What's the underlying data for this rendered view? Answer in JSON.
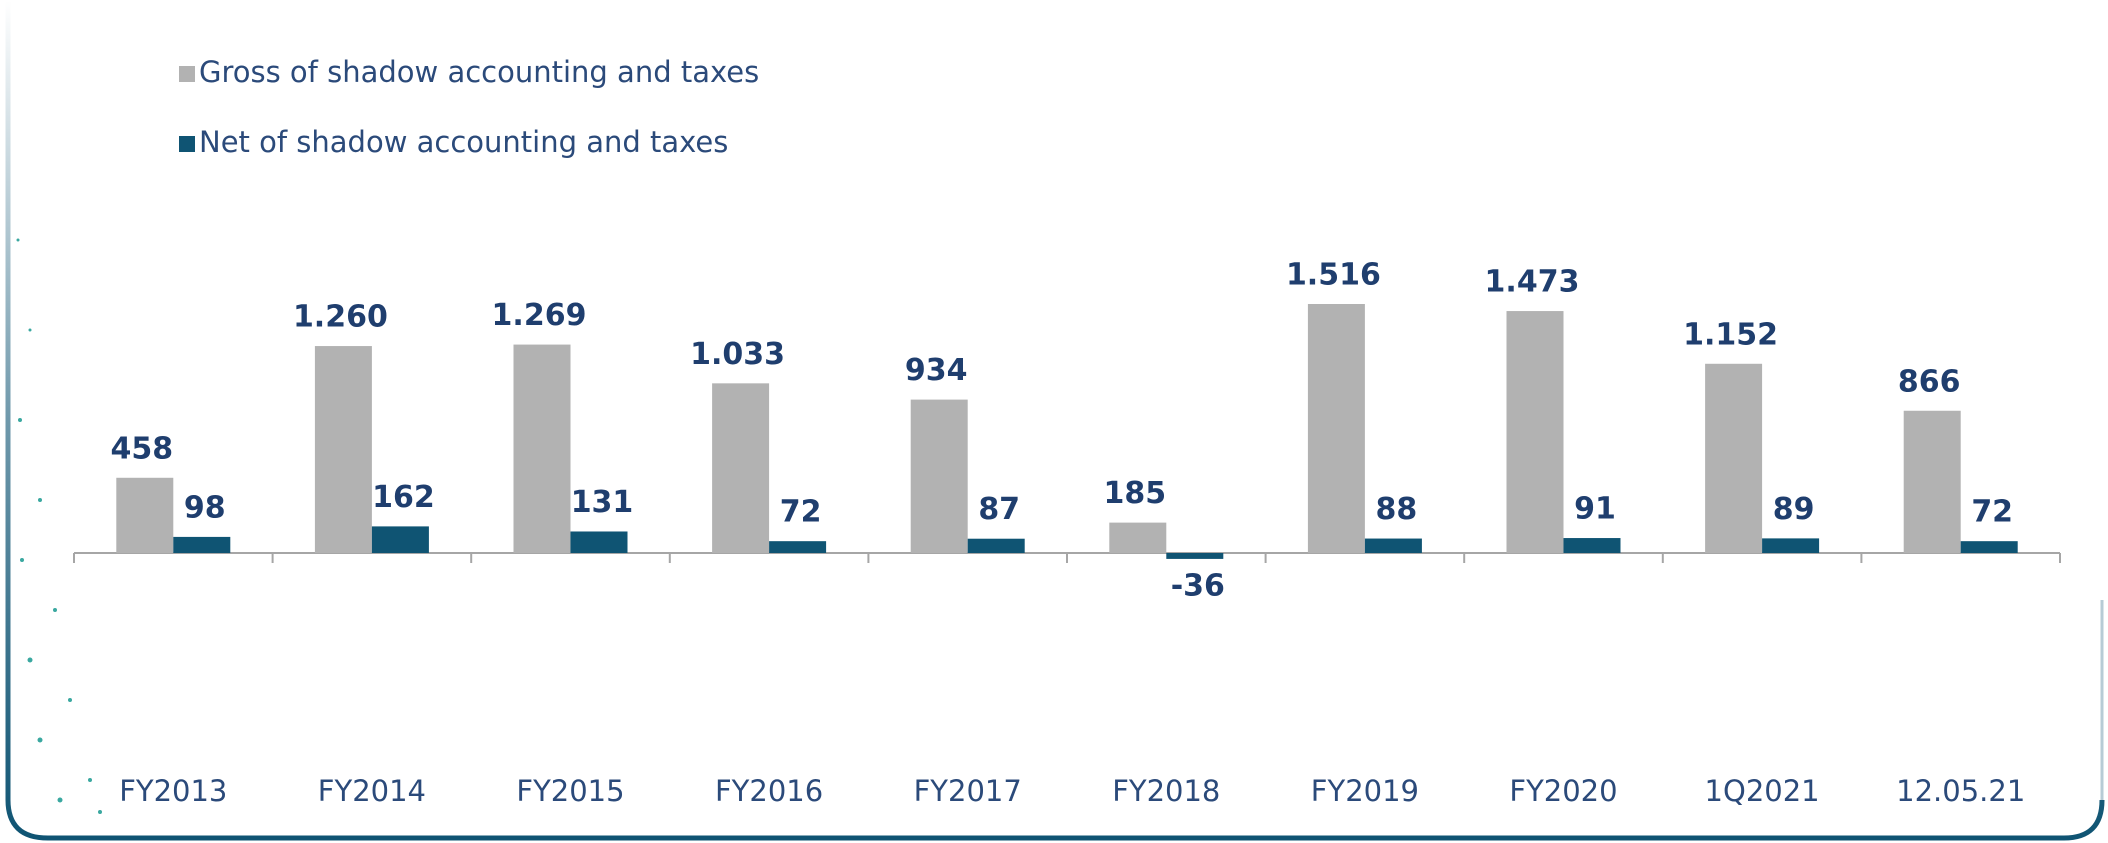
{
  "chart_data": {
    "type": "bar",
    "categories": [
      "FY2013",
      "FY2014",
      "FY2015",
      "FY2016",
      "FY2017",
      "FY2018",
      "FY2019",
      "FY2020",
      "1Q2021",
      "12.05.21"
    ],
    "series": [
      {
        "name": "Gross of shadow accounting and taxes",
        "color": "#b2b2b2",
        "values": [
          458,
          1260,
          1269,
          1033,
          934,
          185,
          1516,
          1473,
          1152,
          866
        ],
        "value_labels": [
          "458",
          "1.260",
          "1.269",
          "1.033",
          "934",
          "185",
          "1.516",
          "1.473",
          "1.152",
          "866"
        ]
      },
      {
        "name": "Net of shadow accounting and taxes",
        "color": "#0f5473",
        "values": [
          98,
          162,
          131,
          72,
          87,
          -36,
          88,
          91,
          89,
          72
        ]
      }
    ],
    "legend": "top-left"
  }
}
